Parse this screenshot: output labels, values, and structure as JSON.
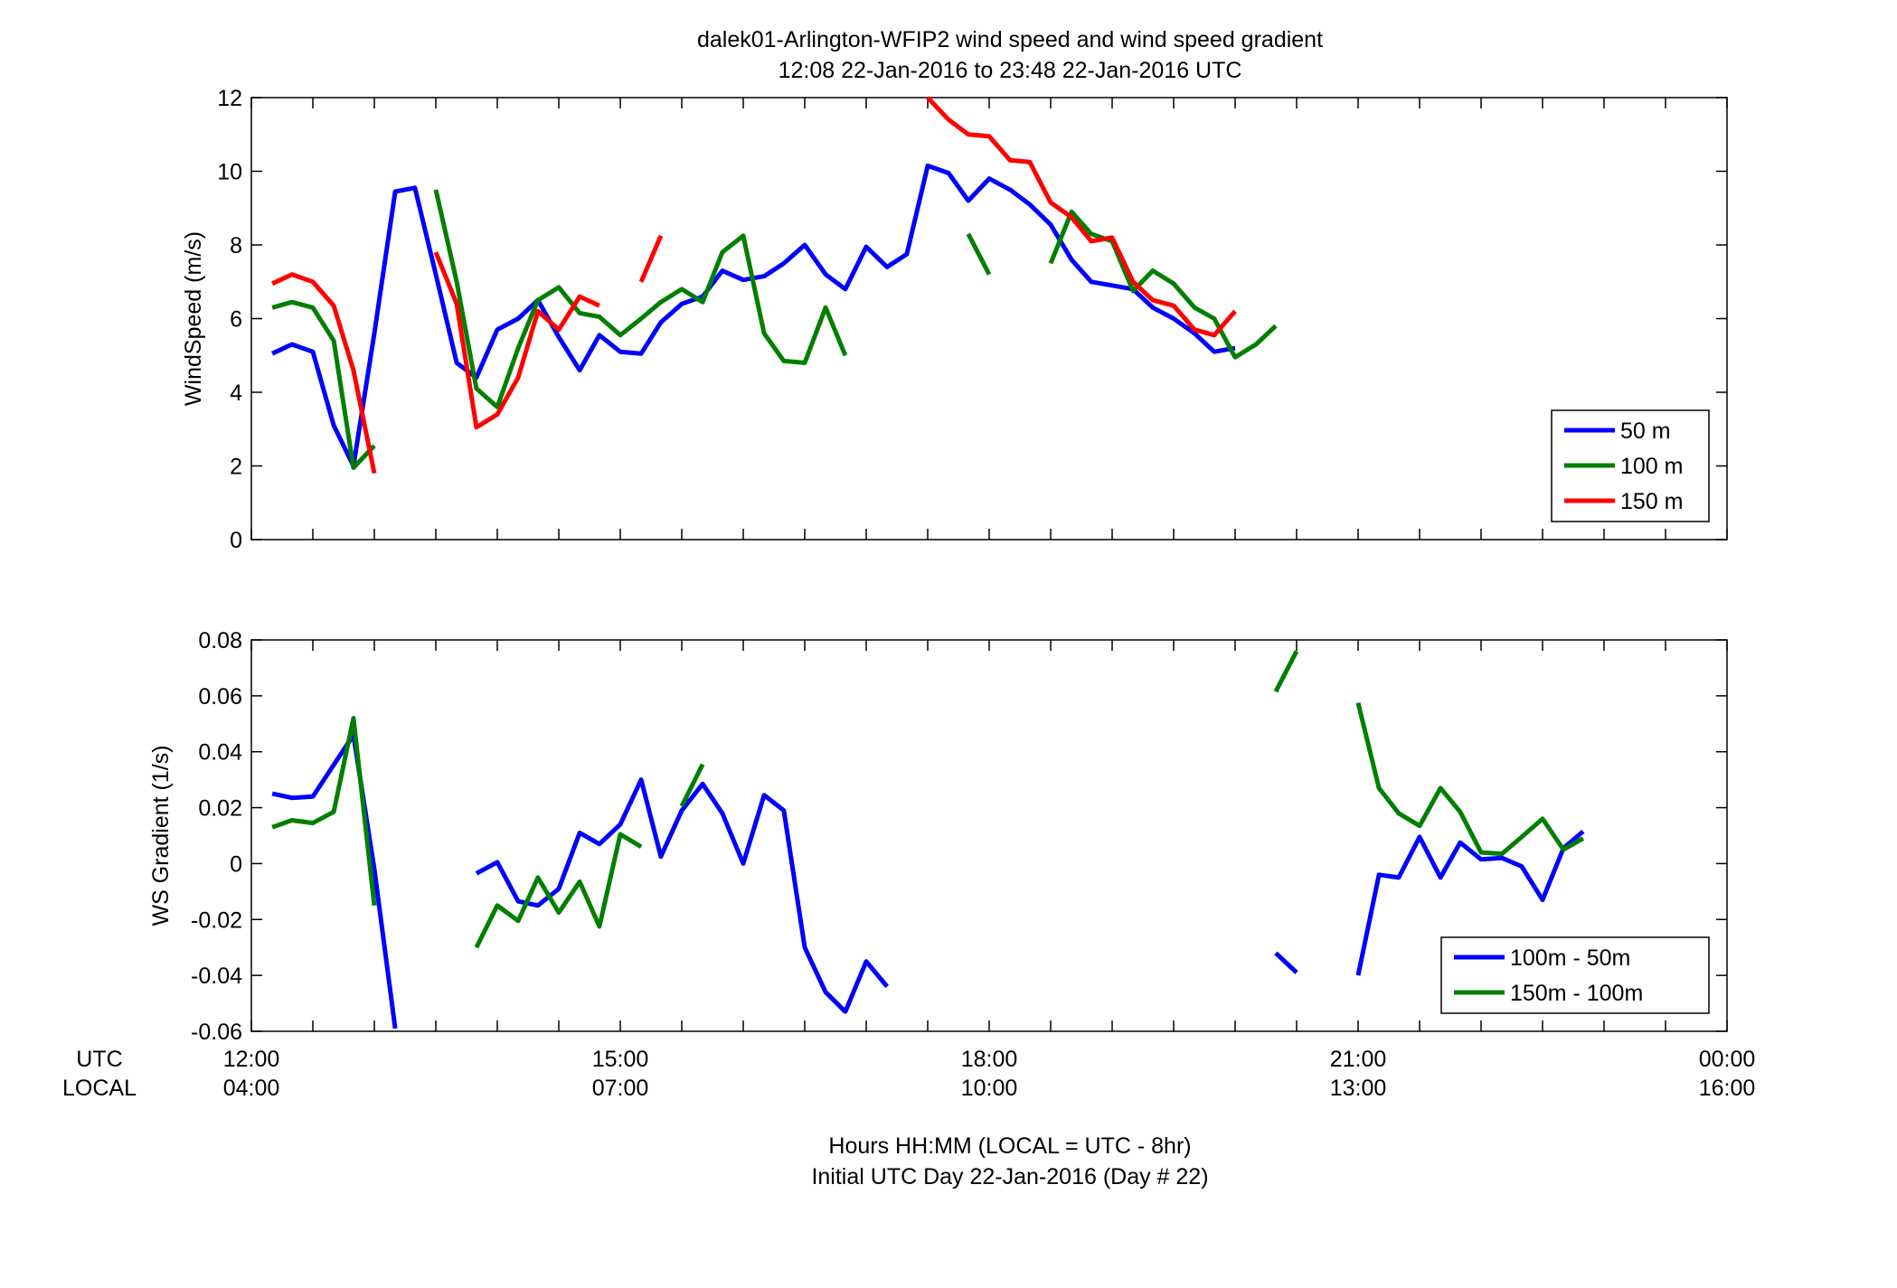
{
  "chart_data": [
    {
      "type": "line",
      "title": "dalek01-Arlington-WFIP2  wind speed and wind speed gradient",
      "subtitle": "12:08 22-Jan-2016 to 23:48 22-Jan-2016  UTC",
      "xlabel": "",
      "ylabel": "WindSpeed (m/s)",
      "xlim": [
        12.0,
        24.0
      ],
      "ylim": [
        0,
        12
      ],
      "yticks": [
        "0",
        "2",
        "4",
        "6",
        "8",
        "10",
        "12"
      ],
      "grid": false,
      "legend_position": "bottom-right",
      "x": [
        12.17,
        12.33,
        12.5,
        12.67,
        12.83,
        13.0,
        13.17,
        13.33,
        13.5,
        13.67,
        13.83,
        14.0,
        14.17,
        14.33,
        14.5,
        14.67,
        14.83,
        15.0,
        15.17,
        15.33,
        15.5,
        15.67,
        15.83,
        16.0,
        16.17,
        16.33,
        16.5,
        16.67,
        16.83,
        17.0,
        17.17,
        17.33,
        17.5,
        17.67,
        17.83,
        18.0,
        18.17,
        18.33,
        18.5,
        18.67,
        18.83,
        19.0,
        19.17,
        19.33,
        19.5,
        19.67,
        19.83,
        20.0,
        20.17,
        20.33,
        20.5,
        20.67,
        20.83,
        21.0,
        21.17,
        21.33,
        21.5,
        21.67,
        21.83,
        22.0,
        22.17,
        22.33,
        22.5,
        22.67,
        22.83,
        23.0,
        23.17,
        23.33,
        23.5,
        23.67,
        23.83
      ],
      "series": [
        {
          "name": "50 m",
          "color": "#0000ff",
          "values": [
            5.05,
            5.3,
            5.1,
            3.1,
            2.0,
            5.6,
            9.45,
            9.55,
            7.2,
            4.8,
            4.4,
            5.7,
            6.0,
            6.5,
            5.5,
            4.6,
            5.55,
            5.1,
            5.05,
            5.9,
            6.4,
            6.6,
            7.3,
            7.05,
            7.15,
            7.5,
            8.0,
            7.2,
            6.8,
            7.95,
            7.4,
            7.75,
            10.15,
            9.95,
            9.2,
            9.8,
            9.5,
            9.1,
            8.55,
            7.6,
            7.0,
            6.9,
            6.8,
            6.3,
            6.0,
            5.6,
            5.1,
            5.2,
            null,
            null,
            null,
            null,
            null,
            null,
            null,
            null,
            null,
            null,
            null,
            null,
            null,
            null,
            null,
            null,
            null,
            null,
            null,
            null,
            null,
            null,
            null
          ]
        },
        {
          "name": "100 m",
          "color": "#007f00",
          "values": [
            6.3,
            6.45,
            6.3,
            5.4,
            1.95,
            2.55,
            null,
            null,
            9.5,
            7.0,
            4.1,
            3.6,
            5.2,
            6.5,
            6.85,
            6.15,
            6.05,
            5.55,
            6.0,
            6.45,
            6.8,
            6.45,
            7.8,
            8.25,
            5.6,
            4.85,
            4.8,
            6.3,
            5.0,
            null,
            null,
            null,
            null,
            null,
            8.3,
            7.2,
            null,
            null,
            7.5,
            8.9,
            8.3,
            8.1,
            6.75,
            7.3,
            6.95,
            6.3,
            6.0,
            4.95,
            5.3,
            5.8,
            null,
            null,
            null,
            null,
            null,
            null,
            null,
            null,
            null,
            null,
            null,
            null,
            null,
            null,
            null,
            null,
            null,
            null,
            null,
            null,
            null
          ]
        },
        {
          "name": "150 m",
          "color": "#ff0000",
          "values": [
            6.95,
            7.2,
            7.0,
            6.35,
            4.6,
            1.8,
            null,
            null,
            7.8,
            6.4,
            3.05,
            3.4,
            4.4,
            6.2,
            5.7,
            6.6,
            6.35,
            null,
            7.0,
            8.25,
            null,
            null,
            null,
            null,
            null,
            null,
            null,
            null,
            null,
            null,
            null,
            null,
            12.0,
            11.4,
            11.0,
            10.95,
            10.3,
            10.25,
            9.15,
            8.75,
            8.1,
            8.2,
            7.0,
            6.5,
            6.35,
            5.7,
            5.55,
            6.2,
            null,
            null,
            null,
            null,
            null,
            null,
            null,
            null,
            null,
            null,
            null,
            null,
            null,
            null,
            null,
            null,
            null,
            null,
            null,
            null,
            null,
            null,
            null
          ]
        }
      ]
    },
    {
      "type": "line",
      "xlabel": "Hours HH:MM  (LOCAL = UTC - 8hr)",
      "xlabel2": "Initial UTC Day 22-Jan-2016 (Day # 22)",
      "ylabel": "WS Gradient (1/s)",
      "xlim": [
        12.0,
        24.0
      ],
      "ylim": [
        -0.06,
        0.08
      ],
      "yticks": [
        "-0.06",
        "-0.04",
        "-0.02",
        "0",
        "0.02",
        "0.04",
        "0.06",
        "0.08"
      ],
      "grid": false,
      "legend_position": "bottom-right",
      "xtick_row_labels": [
        "UTC",
        "LOCAL"
      ],
      "xticks_utc": [
        "12:00",
        "15:00",
        "18:00",
        "21:00",
        "00:00"
      ],
      "xticks_local": [
        "04:00",
        "07:00",
        "10:00",
        "13:00",
        "16:00"
      ],
      "series": [
        {
          "name": "100m - 50m",
          "color": "#0000ff",
          "segments": [
            [
              [
                12.17,
                0.025
              ],
              [
                12.33,
                0.0235
              ],
              [
                12.5,
                0.024
              ],
              [
                12.83,
                0.046
              ],
              [
                13.0,
                -0.002
              ],
              [
                13.17,
                -0.059
              ]
            ],
            [
              [
                13.83,
                -0.0035
              ],
              [
                14.0,
                0.0005
              ],
              [
                14.17,
                -0.0135
              ],
              [
                14.33,
                -0.015
              ],
              [
                14.5,
                -0.009
              ],
              [
                14.67,
                0.011
              ],
              [
                14.83,
                0.007
              ],
              [
                15.0,
                0.014
              ],
              [
                15.17,
                0.03
              ],
              [
                15.33,
                0.0025
              ],
              [
                15.5,
                0.019
              ],
              [
                15.67,
                0.0285
              ],
              [
                15.83,
                0.018
              ],
              [
                16.0,
                0.0
              ],
              [
                16.17,
                0.0245
              ],
              [
                16.33,
                0.019
              ],
              [
                16.5,
                -0.03
              ],
              [
                16.67,
                -0.046
              ],
              [
                16.83,
                -0.053
              ],
              [
                17.0,
                -0.035
              ],
              [
                17.17,
                -0.044
              ]
            ],
            [
              [
                20.33,
                -0.032
              ],
              [
                20.5,
                -0.039
              ]
            ],
            [
              [
                21.0,
                -0.04
              ],
              [
                21.17,
                -0.004
              ],
              [
                21.33,
                -0.005
              ],
              [
                21.5,
                0.0095
              ],
              [
                21.67,
                -0.005
              ],
              [
                21.83,
                0.0075
              ],
              [
                22.0,
                0.0015
              ],
              [
                22.17,
                0.002
              ],
              [
                22.33,
                -0.001
              ],
              [
                22.5,
                -0.013
              ],
              [
                22.67,
                0.0055
              ],
              [
                22.83,
                0.0115
              ]
            ]
          ]
        },
        {
          "name": "150m - 100m",
          "color": "#007f00",
          "segments": [
            [
              [
                12.17,
                0.013
              ],
              [
                12.33,
                0.0155
              ],
              [
                12.5,
                0.0145
              ],
              [
                12.67,
                0.0185
              ],
              [
                12.83,
                0.052
              ],
              [
                13.0,
                -0.015
              ]
            ],
            [
              [
                13.83,
                -0.03
              ],
              [
                14.0,
                -0.015
              ],
              [
                14.17,
                -0.0205
              ],
              [
                14.33,
                -0.005
              ],
              [
                14.5,
                -0.0175
              ],
              [
                14.67,
                -0.0065
              ],
              [
                14.83,
                -0.0225
              ],
              [
                15.0,
                0.0105
              ],
              [
                15.17,
                0.006
              ]
            ],
            [
              [
                15.5,
                0.0205
              ],
              [
                15.67,
                0.0355
              ]
            ],
            [
              [
                20.33,
                0.0615
              ],
              [
                20.5,
                0.076
              ]
            ],
            [
              [
                21.0,
                0.0575
              ],
              [
                21.17,
                0.027
              ],
              [
                21.33,
                0.018
              ],
              [
                21.5,
                0.0135
              ],
              [
                21.67,
                0.027
              ],
              [
                21.83,
                0.0185
              ],
              [
                22.0,
                0.004
              ],
              [
                22.17,
                0.0035
              ],
              [
                22.33,
                0.0095
              ],
              [
                22.5,
                0.016
              ],
              [
                22.67,
                0.005
              ],
              [
                22.83,
                0.009
              ]
            ]
          ]
        }
      ]
    }
  ]
}
